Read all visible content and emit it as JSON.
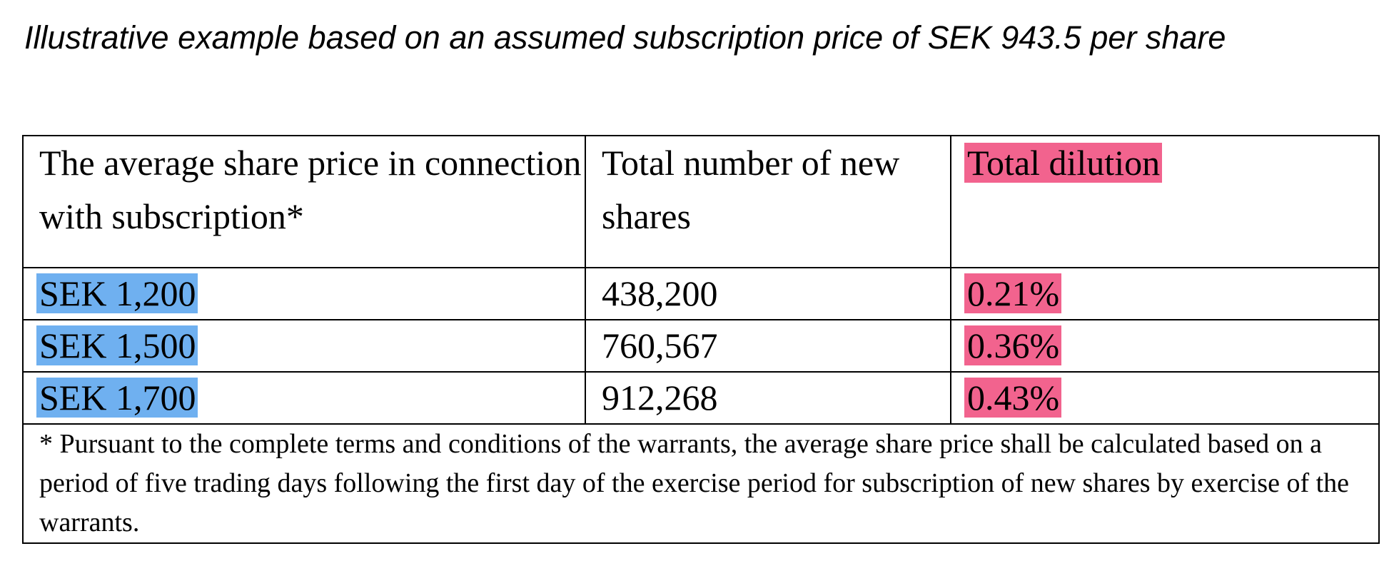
{
  "title": "Illustrative example based on an assumed subscription price of SEK 943.5 per share",
  "table": {
    "headers": [
      "The average share price in connection with subscription*",
      "Total number of new shares",
      "Total dilution"
    ],
    "rows": [
      {
        "price": "SEK 1,200",
        "new_shares": "438,200",
        "dilution": "0.21%"
      },
      {
        "price": "SEK 1,500",
        "new_shares": "760,567",
        "dilution": "0.36%"
      },
      {
        "price": "SEK 1,700",
        "new_shares": "912,268",
        "dilution": "0.43%"
      }
    ],
    "footnote": "* Pursuant to the complete terms and conditions of the warrants, the average share price shall be calculated based on a period of five trading days following the first day of the exercise period for subscription of new shares by exercise of the warrants."
  },
  "colors": {
    "highlight_blue": "#6fb0f0",
    "highlight_pink": "#f2638e"
  }
}
